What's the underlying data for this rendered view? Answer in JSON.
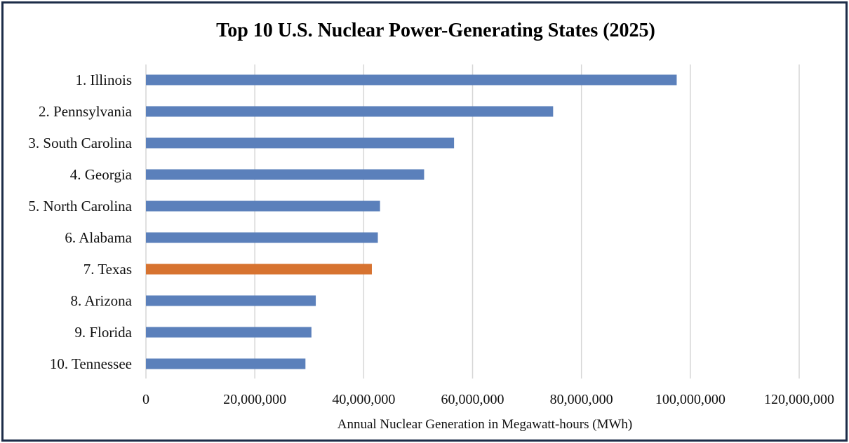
{
  "chart_data": {
    "type": "bar",
    "orientation": "horizontal",
    "title": "Top 10 U.S. Nuclear Power-Generating States (2025)",
    "xlabel": "Annual Nuclear Generation in Megawatt-hours (MWh)",
    "ylabel": "",
    "xlim": [
      0,
      120000000
    ],
    "xticks": [
      "0",
      "20,000,000",
      "40,000,000",
      "60,000,000",
      "80,000,000",
      "100,000,000",
      "120,000,000"
    ],
    "grid": "vertical",
    "legend": "none",
    "categories": [
      "1. Illinois",
      "2. Pennsylvania",
      "3. South Carolina",
      "4. Georgia",
      "5. North Carolina",
      "6. Alabama",
      "7. Texas",
      "8. Arizona",
      "9. Florida",
      "10. Tennessee"
    ],
    "values": [
      97500000,
      74800000,
      56600000,
      51100000,
      43000000,
      42600000,
      41500000,
      31200000,
      30400000,
      29300000
    ],
    "colors": {
      "default": "#5b80bb",
      "highlight": "#d77330",
      "highlight_category": "7. Texas"
    }
  }
}
